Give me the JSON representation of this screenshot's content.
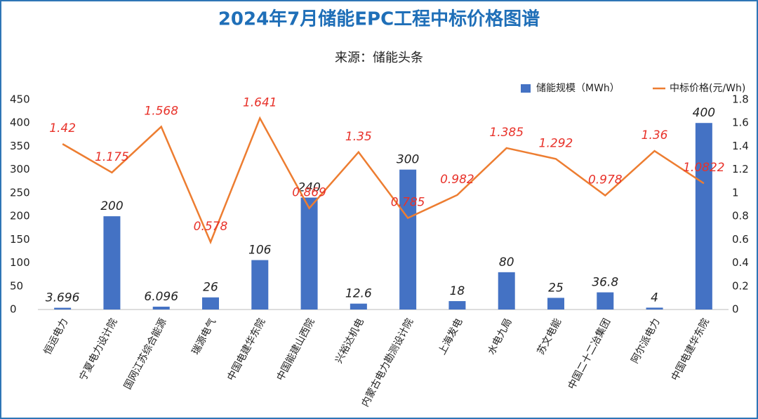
{
  "chart_data": {
    "type": "bar",
    "title": "2024年7月储能EPC工程中标价格图谱",
    "subtitle": "来源：储能头条",
    "categories": [
      "恒运电力",
      "宁夏电力设计院",
      "国网江苏综合能源",
      "瑞源电气",
      "中国电建华东院",
      "中国能建山西院",
      "兴裕达机电",
      "内蒙古电力勘测设计院",
      "上海发电",
      "水电九局",
      "苏文电能",
      "中国二十二冶集团",
      "阿尔派电力",
      "中国电建华东院"
    ],
    "series": [
      {
        "name": "储能规模（MWh）",
        "type": "bar",
        "color": "#4472c4",
        "values": [
          3.696,
          200,
          6.096,
          26,
          106,
          240,
          12.6,
          300,
          18,
          80,
          25,
          36.8,
          4,
          400
        ]
      },
      {
        "name": "中标价格(元/Wh)",
        "type": "line",
        "axis": "y2",
        "color": "#ed7d31",
        "label_color": "#e8322a",
        "values": [
          1.42,
          1.175,
          1.568,
          0.578,
          1.641,
          0.869,
          1.35,
          0.785,
          0.982,
          1.385,
          1.292,
          0.978,
          1.36,
          1.0822
        ]
      }
    ],
    "ylim": [
      0,
      450
    ],
    "yticks": [
      0,
      50,
      100,
      150,
      200,
      250,
      300,
      350,
      400,
      450
    ],
    "y2lim": [
      0,
      1.8
    ],
    "y2ticks": [
      0,
      0.2,
      0.4,
      0.6,
      0.8,
      1,
      1.2,
      1.4,
      1.6,
      1.8
    ],
    "grid": false,
    "legend": "top-right"
  }
}
